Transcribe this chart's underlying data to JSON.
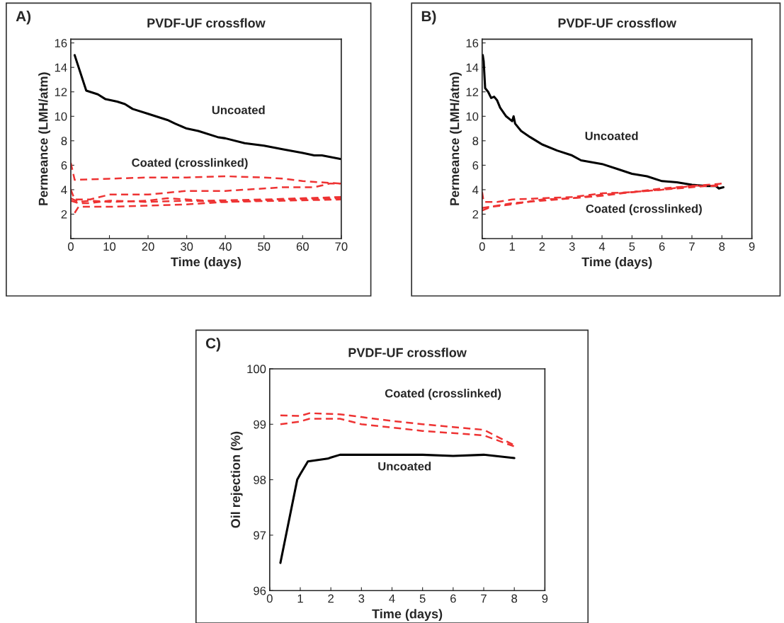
{
  "chart_data": [
    {
      "type": "line",
      "title": "PVDF-UF crossflow",
      "xlabel": "Time (days)",
      "ylabel": "Permeance (LMH/atm)",
      "xlim": [
        0,
        70
      ],
      "ylim": [
        0,
        16.3
      ],
      "xticks": [
        0,
        10,
        20,
        30,
        40,
        50,
        60,
        70
      ],
      "yticks": [
        {
          "value": 0,
          "label": null
        },
        2,
        4,
        6,
        8,
        10,
        12,
        14,
        16
      ],
      "grid": false,
      "legend": false,
      "annotations": [
        "A)",
        "Uncoated",
        "Coated (crosslinked)"
      ],
      "series": [
        {
          "color": "#000000",
          "line_style": "solid",
          "x": [
            1,
            4,
            7,
            9,
            12,
            14,
            16,
            20,
            25,
            27,
            30,
            33,
            38,
            40,
            45,
            50,
            55,
            60,
            63,
            65,
            70
          ],
          "values": [
            15,
            12.1,
            11.8,
            11.4,
            11.2,
            11,
            10.6,
            10.2,
            9.7,
            9.4,
            9,
            8.8,
            8.3,
            8.2,
            7.8,
            7.6,
            7.3,
            7,
            6.8,
            6.8,
            6.5
          ]
        },
        {
          "color": "#ee3333",
          "line_style": "dashed",
          "x": [
            0,
            1,
            10,
            20,
            30,
            40,
            50,
            55,
            60,
            70
          ],
          "values": [
            6.2,
            4.8,
            4.9,
            5.0,
            5.0,
            5.1,
            5.0,
            4.9,
            4.7,
            4.5
          ]
        },
        {
          "color": "#ee3333",
          "line_style": "dashed",
          "x": [
            0,
            1,
            5,
            10,
            20,
            30,
            40,
            55,
            63,
            67,
            70
          ],
          "values": [
            4.0,
            3.2,
            3.2,
            3.6,
            3.6,
            3.9,
            3.9,
            4.2,
            4.2,
            4.5,
            4.5
          ]
        },
        {
          "color": "#ee3333",
          "line_style": "dashed",
          "x": [
            0,
            2,
            5,
            10,
            20,
            25,
            35,
            50,
            60,
            70
          ],
          "values": [
            3.3,
            3.0,
            3.1,
            3.0,
            3.1,
            3.3,
            3.1,
            3.2,
            3.3,
            3.4
          ]
        },
        {
          "color": "#ee3333",
          "line_style": "dashed",
          "x": [
            0,
            2,
            5,
            10,
            20,
            30,
            40,
            55,
            70
          ],
          "values": [
            3.1,
            2.9,
            2.9,
            3.1,
            3.0,
            3.1,
            3.0,
            3.2,
            3.3
          ]
        },
        {
          "color": "#ee3333",
          "line_style": "dashed",
          "x": [
            1,
            2,
            10,
            20,
            30,
            40,
            55,
            70
          ],
          "values": [
            2.1,
            2.6,
            2.6,
            2.7,
            2.8,
            3.0,
            3.1,
            3.2
          ]
        }
      ]
    },
    {
      "type": "line",
      "title": "PVDF-UF crossflow",
      "xlabel": "Time (days)",
      "ylabel": "Permeance (LMH/atm)",
      "xlim": [
        0,
        9
      ],
      "ylim": [
        0,
        16.3
      ],
      "xticks": [
        0,
        1,
        2,
        3,
        4,
        5,
        6,
        7,
        8,
        9
      ],
      "yticks": [
        {
          "value": 0,
          "label": null
        },
        2,
        4,
        6,
        8,
        10,
        12,
        14,
        16
      ],
      "grid": false,
      "legend": false,
      "annotations": [
        "B)",
        "Uncoated",
        "Coated (crosslinked)"
      ],
      "series": [
        {
          "color": "#000000",
          "line_style": "solid",
          "x": [
            0.02,
            0.05,
            0.1,
            0.2,
            0.3,
            0.4,
            0.5,
            0.6,
            0.8,
            1.0,
            1.05,
            1.1,
            1.3,
            1.6,
            2,
            2.5,
            3,
            3.3,
            4,
            4.5,
            5,
            5.5,
            6,
            6.5,
            7,
            7.5,
            7.8,
            7.9,
            8.05
          ],
          "values": [
            15,
            14.5,
            12.3,
            12,
            11.5,
            11.6,
            11.3,
            10.7,
            10,
            9.6,
            10,
            9.4,
            8.8,
            8.3,
            7.7,
            7.2,
            6.8,
            6.4,
            6.1,
            5.7,
            5.3,
            5.1,
            4.7,
            4.6,
            4.4,
            4.3,
            4.3,
            4.1,
            4.2
          ]
        },
        {
          "color": "#ee3333",
          "line_style": "dashed",
          "x": [
            0,
            0.05,
            0.5,
            1,
            2,
            3,
            4,
            5,
            6,
            7,
            8
          ],
          "values": [
            3.8,
            3.0,
            3.0,
            3.2,
            3.3,
            3.4,
            3.7,
            3.8,
            4.0,
            4.3,
            4.5
          ]
        },
        {
          "color": "#ee3333",
          "line_style": "dashed",
          "x": [
            0,
            0.5,
            1,
            2,
            3,
            4,
            5,
            6,
            7,
            8
          ],
          "values": [
            2.5,
            2.7,
            2.9,
            3.1,
            3.3,
            3.5,
            3.8,
            4.0,
            4.2,
            4.4
          ]
        },
        {
          "color": "#ee3333",
          "line_style": "dashed",
          "x": [
            0,
            0.3,
            1,
            2,
            3,
            4,
            5,
            6,
            7,
            8
          ],
          "values": [
            2.3,
            2.6,
            2.8,
            3.2,
            3.3,
            3.6,
            3.8,
            4.1,
            4.3,
            4.3
          ]
        }
      ]
    },
    {
      "type": "line",
      "title": "PVDF-UF crossflow",
      "xlabel": "Time (days)",
      "ylabel": "Oil rejection (%)",
      "xlim": [
        0,
        9
      ],
      "ylim": [
        96,
        100
      ],
      "xticks": [
        0,
        1,
        2,
        3,
        4,
        5,
        6,
        7,
        8,
        9
      ],
      "yticks": [
        96,
        97,
        98,
        99,
        100
      ],
      "grid": false,
      "legend": false,
      "annotations": [
        "C)",
        "Uncoated",
        "Coated (crosslinked)"
      ],
      "series": [
        {
          "color": "#000000",
          "line_style": "solid",
          "x": [
            0.35,
            0.9,
            1.0,
            1.25,
            1.9,
            2.0,
            2.3,
            3,
            4,
            5,
            6,
            7,
            8
          ],
          "values": [
            96.5,
            98.0,
            98.1,
            98.33,
            98.38,
            98.4,
            98.45,
            98.45,
            98.45,
            98.45,
            98.43,
            98.45,
            98.39
          ]
        },
        {
          "color": "#ee3333",
          "line_style": "dashed",
          "x": [
            0.35,
            1.0,
            1.3,
            2.3,
            3,
            4,
            5,
            6,
            7,
            8
          ],
          "values": [
            99.16,
            99.15,
            99.2,
            99.18,
            99.13,
            99.06,
            99.0,
            98.95,
            98.9,
            98.62
          ]
        },
        {
          "color": "#ee3333",
          "line_style": "dashed",
          "x": [
            0.35,
            1.0,
            1.3,
            2.3,
            3,
            4,
            5,
            6,
            7,
            8
          ],
          "values": [
            99.0,
            99.05,
            99.1,
            99.1,
            99.0,
            98.94,
            98.88,
            98.84,
            98.8,
            98.6
          ]
        }
      ]
    }
  ]
}
